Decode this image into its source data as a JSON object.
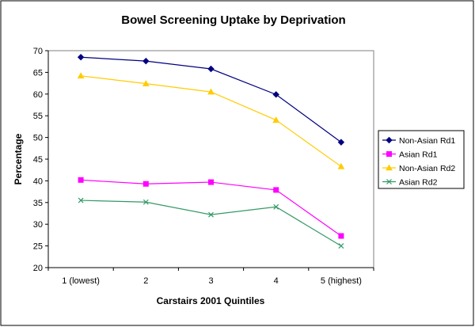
{
  "chart_data": {
    "type": "line",
    "title": "Bowel Screening Uptake by Deprivation",
    "xlabel": "Carstairs 2001 Quintiles",
    "ylabel": "Percentage",
    "categories": [
      "1 (lowest)",
      "2",
      "3",
      "4",
      "5 (highest)"
    ],
    "ylim": [
      20,
      70
    ],
    "yticks": [
      20,
      25,
      30,
      35,
      40,
      45,
      50,
      55,
      60,
      65,
      70
    ],
    "grid": false,
    "legend_position": "right",
    "series": [
      {
        "name": "Non-Asian Rd1",
        "values": [
          68.5,
          67.6,
          65.8,
          59.9,
          48.9
        ],
        "color": "#000080",
        "marker": "diamond"
      },
      {
        "name": "Asian Rd1",
        "values": [
          40.2,
          39.3,
          39.7,
          37.9,
          27.3
        ],
        "color": "#ff00ff",
        "marker": "square"
      },
      {
        "name": "Non-Asian Rd2",
        "values": [
          64.2,
          62.4,
          60.5,
          54.0,
          43.3
        ],
        "color": "#ffcc00",
        "marker": "triangle"
      },
      {
        "name": "Asian Rd2",
        "values": [
          35.5,
          35.1,
          32.2,
          34.0,
          25.0
        ],
        "color": "#339966",
        "marker": "x"
      }
    ]
  }
}
